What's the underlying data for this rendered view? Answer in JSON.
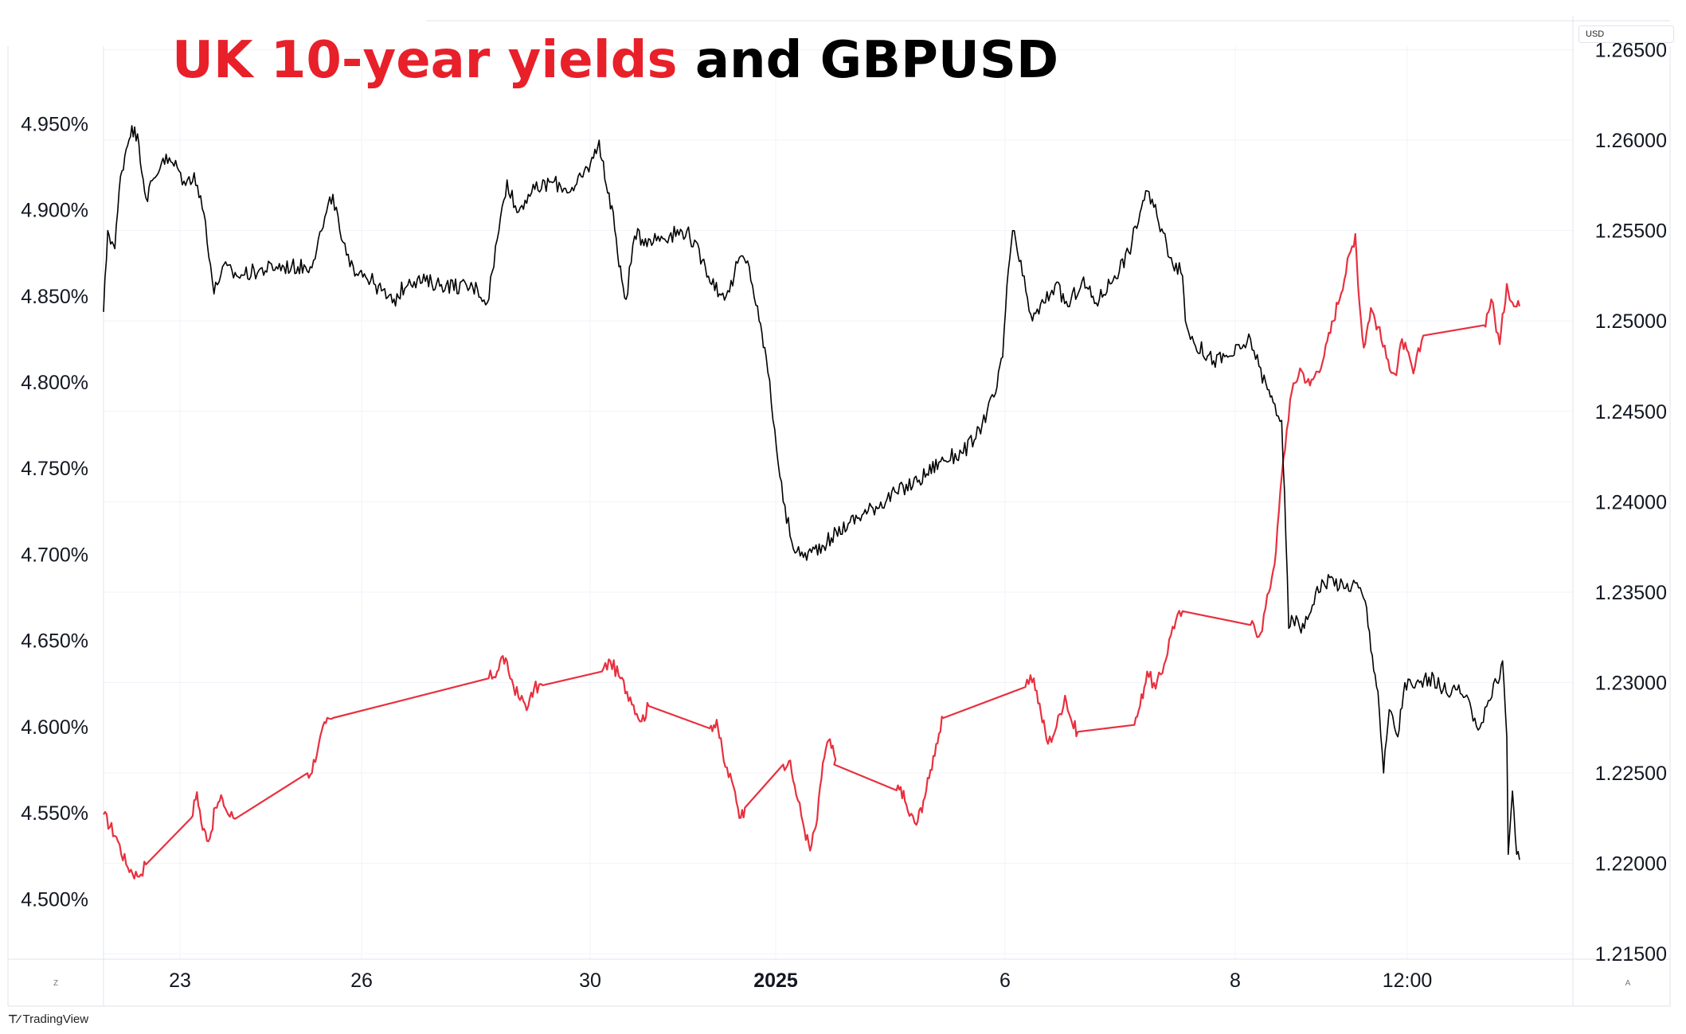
{
  "title": {
    "part1": "UK 10-year yields",
    "part2": "and GBPUSD",
    "part1_color": "#e8202a",
    "part2_color": "#000000"
  },
  "unit_badge": "USD",
  "branding": "TradingView",
  "corner_left": "Z",
  "corner_right": "A",
  "colors": {
    "yield": "#e8303f",
    "gbpusd": "#000000",
    "grid": "#f0f3fa",
    "axis_text": "#131722"
  },
  "chart_data": {
    "type": "line",
    "title": "UK 10-year yields and GBPUSD",
    "x_tick_labels": [
      "23",
      "26",
      "30",
      "2025",
      "6",
      "8",
      "12:00"
    ],
    "left_axis": {
      "ticks": [
        "4.950%",
        "4.900%",
        "4.850%",
        "4.800%",
        "4.750%",
        "4.700%",
        "4.650%",
        "4.600%",
        "4.550%",
        "4.500%"
      ],
      "range": [
        4.465,
        4.995
      ]
    },
    "right_axis": {
      "unit": "USD",
      "ticks": [
        "1.26500",
        "1.26000",
        "1.25500",
        "1.25000",
        "1.24500",
        "1.24000",
        "1.23500",
        "1.23000",
        "1.22500",
        "1.22000",
        "1.21500"
      ],
      "range": [
        1.2147,
        1.2652
      ]
    },
    "grid": true,
    "series": [
      {
        "name": "UK 10-year yields",
        "axis": "left",
        "color": "#e8303f",
        "points": [
          [
            0,
            4.549
          ],
          [
            0.9,
            4.536
          ],
          [
            1.6,
            4.52
          ],
          [
            2.4,
            4.513
          ],
          [
            3.0,
            4.52
          ],
          [
            6.2,
            4.547
          ],
          [
            6.6,
            4.562
          ],
          [
            7.0,
            4.54
          ],
          [
            7.5,
            4.535
          ],
          [
            7.9,
            4.553
          ],
          [
            8.4,
            4.558
          ],
          [
            8.8,
            4.549
          ],
          [
            9.4,
            4.547
          ],
          [
            14.4,
            4.573
          ],
          [
            14.6,
            4.572
          ],
          [
            15.2,
            4.59
          ],
          [
            15.7,
            4.602
          ],
          [
            16.2,
            4.605
          ],
          [
            27.2,
            4.628
          ],
          [
            27.8,
            4.632
          ],
          [
            28.2,
            4.641
          ],
          [
            28.6,
            4.632
          ],
          [
            29.3,
            4.617
          ],
          [
            30.0,
            4.612
          ],
          [
            30.4,
            4.622
          ],
          [
            31.0,
            4.624
          ],
          [
            35.2,
            4.632
          ],
          [
            35.8,
            4.638
          ],
          [
            36.5,
            4.628
          ],
          [
            37.2,
            4.617
          ],
          [
            38.0,
            4.603
          ],
          [
            38.5,
            4.612
          ],
          [
            42.8,
            4.599
          ],
          [
            43.3,
            4.604
          ],
          [
            43.8,
            4.58
          ],
          [
            44.6,
            4.562
          ],
          [
            45.0,
            4.547
          ],
          [
            45.3,
            4.553
          ],
          [
            48.0,
            4.578
          ],
          [
            48.4,
            4.58
          ],
          [
            48.8,
            4.566
          ],
          [
            49.4,
            4.544
          ],
          [
            49.9,
            4.528
          ],
          [
            50.4,
            4.546
          ],
          [
            50.8,
            4.579
          ],
          [
            51.2,
            4.592
          ],
          [
            51.7,
            4.581
          ],
          [
            51.6,
            4.578
          ],
          [
            56.0,
            4.563
          ],
          [
            56.3,
            4.565
          ],
          [
            56.8,
            4.551
          ],
          [
            57.4,
            4.543
          ],
          [
            57.9,
            4.557
          ],
          [
            58.3,
            4.57
          ],
          [
            58.8,
            4.59
          ],
          [
            59.3,
            4.605
          ],
          [
            65.1,
            4.623
          ],
          [
            65.7,
            4.628
          ],
          [
            66.2,
            4.608
          ],
          [
            66.7,
            4.59
          ],
          [
            67.3,
            4.6
          ],
          [
            67.9,
            4.618
          ],
          [
            68.4,
            4.602
          ],
          [
            68.8,
            4.597
          ],
          [
            72.8,
            4.601
          ],
          [
            73.2,
            4.612
          ],
          [
            73.7,
            4.632
          ],
          [
            74.3,
            4.622
          ],
          [
            74.9,
            4.636
          ],
          [
            75.5,
            4.658
          ],
          [
            76.2,
            4.667
          ],
          [
            81.0,
            4.659
          ],
          [
            81.7,
            4.654
          ],
          [
            82.3,
            4.678
          ],
          [
            82.8,
            4.702
          ],
          [
            83.2,
            4.745
          ],
          [
            83.8,
            4.79
          ],
          [
            84.5,
            4.808
          ],
          [
            85.2,
            4.798
          ],
          [
            86.2,
            4.815
          ],
          [
            88.4,
            4.886
          ],
          [
            88.7,
            4.845
          ],
          [
            89.0,
            4.82
          ],
          [
            89.5,
            4.843
          ],
          [
            90.0,
            4.832
          ],
          [
            90.6,
            4.814
          ],
          [
            91.3,
            4.804
          ],
          [
            91.7,
            4.825
          ],
          [
            92.5,
            4.805
          ],
          [
            93.2,
            4.827
          ],
          [
            97.5,
            4.833
          ],
          [
            98.0,
            4.848
          ],
          [
            98.6,
            4.822
          ],
          [
            99.1,
            4.857
          ],
          [
            99.6,
            4.844
          ],
          [
            100,
            4.844
          ]
        ]
      },
      {
        "name": "GBPUSD",
        "axis": "right",
        "color": "#000000",
        "points": [
          [
            0,
            1.2505
          ],
          [
            0.3,
            1.255
          ],
          [
            0.8,
            1.254
          ],
          [
            1.2,
            1.258
          ],
          [
            1.6,
            1.2595
          ],
          [
            2.0,
            1.2608
          ],
          [
            2.5,
            1.2598
          ],
          [
            3.0,
            1.2568
          ],
          [
            4.2,
            1.259
          ],
          [
            5.2,
            1.2585
          ],
          [
            5.8,
            1.2575
          ],
          [
            6.4,
            1.2582
          ],
          [
            7.2,
            1.2555
          ],
          [
            7.8,
            1.2515
          ],
          [
            8.4,
            1.253
          ],
          [
            9.4,
            1.2525
          ],
          [
            12.2,
            1.253
          ],
          [
            14.6,
            1.253
          ],
          [
            15.4,
            1.255
          ],
          [
            16.2,
            1.257
          ],
          [
            16.8,
            1.2545
          ],
          [
            17.4,
            1.253
          ],
          [
            18.2,
            1.2528
          ],
          [
            19.2,
            1.252
          ],
          [
            20.4,
            1.251
          ],
          [
            21.6,
            1.2523
          ],
          [
            24.2,
            1.252
          ],
          [
            26.4,
            1.2518
          ],
          [
            27.1,
            1.251
          ],
          [
            27.8,
            1.2545
          ],
          [
            28.5,
            1.2578
          ],
          [
            29.2,
            1.256
          ],
          [
            30.0,
            1.257
          ],
          [
            31.6,
            1.2577
          ],
          [
            33.2,
            1.2572
          ],
          [
            34.6,
            1.259
          ],
          [
            35.0,
            1.26
          ],
          [
            35.5,
            1.2575
          ],
          [
            36.0,
            1.256
          ],
          [
            36.4,
            1.253
          ],
          [
            36.9,
            1.2512
          ],
          [
            37.5,
            1.2547
          ],
          [
            38.6,
            1.2545
          ],
          [
            41.2,
            1.255
          ],
          [
            42.5,
            1.253
          ],
          [
            43.5,
            1.2515
          ],
          [
            44.2,
            1.2516
          ],
          [
            44.9,
            1.2535
          ],
          [
            45.6,
            1.253
          ],
          [
            46.3,
            1.25
          ],
          [
            46.8,
            1.248
          ],
          [
            47.4,
            1.244
          ],
          [
            48.0,
            1.24
          ],
          [
            48.6,
            1.2378
          ],
          [
            49.2,
            1.237
          ],
          [
            50.0,
            1.2372
          ],
          [
            51.4,
            1.238
          ],
          [
            52.6,
            1.2388
          ],
          [
            54.0,
            1.2395
          ],
          [
            56.0,
            1.2405
          ],
          [
            57.6,
            1.2412
          ],
          [
            59.0,
            1.2422
          ],
          [
            60.6,
            1.2427
          ],
          [
            61.6,
            1.2435
          ],
          [
            62.4,
            1.245
          ],
          [
            63.0,
            1.246
          ],
          [
            63.5,
            1.248
          ],
          [
            63.8,
            1.252
          ],
          [
            64.2,
            1.255
          ],
          [
            64.9,
            1.2525
          ],
          [
            65.6,
            1.25
          ],
          [
            66.4,
            1.251
          ],
          [
            67.2,
            1.252
          ],
          [
            68.1,
            1.2508
          ],
          [
            69.1,
            1.2522
          ],
          [
            70.1,
            1.251
          ],
          [
            71.4,
            1.2525
          ],
          [
            72.4,
            1.2538
          ],
          [
            73.2,
            1.256
          ],
          [
            73.6,
            1.2572
          ],
          [
            74.4,
            1.2558
          ],
          [
            75.4,
            1.2535
          ],
          [
            76.2,
            1.2525
          ],
          [
            76.4,
            1.25
          ],
          [
            77.0,
            1.2488
          ],
          [
            78.4,
            1.2478
          ],
          [
            79.4,
            1.248
          ],
          [
            80.4,
            1.2485
          ],
          [
            81.0,
            1.249
          ],
          [
            81.6,
            1.2475
          ],
          [
            82.2,
            1.2462
          ],
          [
            82.6,
            1.2455
          ],
          [
            83.2,
            1.2445
          ],
          [
            83.5,
            1.238
          ],
          [
            83.7,
            1.233
          ],
          [
            84.0,
            1.2335
          ],
          [
            84.8,
            1.233
          ],
          [
            85.6,
            1.235
          ],
          [
            86.6,
            1.2358
          ],
          [
            87.6,
            1.2352
          ],
          [
            88.4,
            1.2355
          ],
          [
            89.1,
            1.2345
          ],
          [
            89.6,
            1.2315
          ],
          [
            90.0,
            1.2295
          ],
          [
            90.4,
            1.225
          ],
          [
            90.8,
            1.2285
          ],
          [
            91.4,
            1.227
          ],
          [
            91.9,
            1.23
          ],
          [
            92.6,
            1.2297
          ],
          [
            93.6,
            1.2303
          ],
          [
            94.6,
            1.2296
          ],
          [
            95.6,
            1.2296
          ],
          [
            96.6,
            1.2285
          ],
          [
            97.2,
            1.2275
          ],
          [
            97.8,
            1.229
          ],
          [
            98.4,
            1.23
          ],
          [
            98.8,
            1.2312
          ],
          [
            99.1,
            1.227
          ],
          [
            99.2,
            1.2205
          ],
          [
            99.5,
            1.224
          ],
          [
            99.8,
            1.2205
          ],
          [
            100,
            1.2202
          ]
        ]
      }
    ]
  }
}
